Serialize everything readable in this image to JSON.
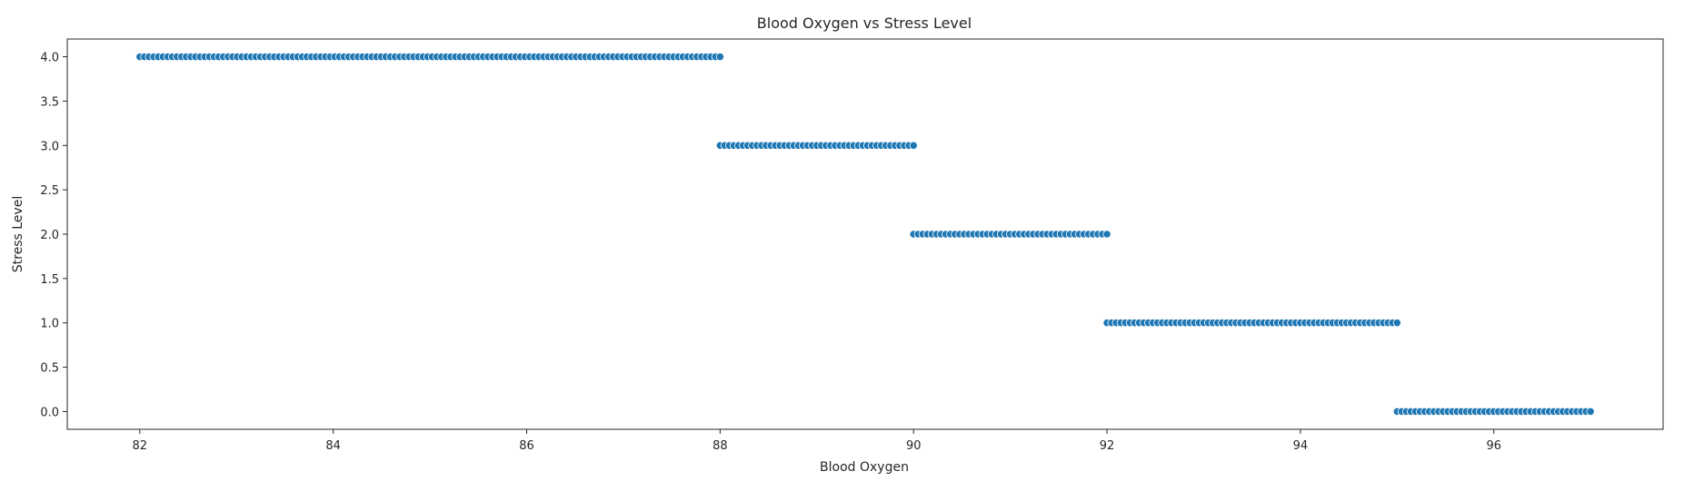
{
  "chart_data": {
    "type": "scatter",
    "title": "Blood Oxygen vs Stress Level",
    "xlabel": "Blood Oxygen",
    "ylabel": "Stress Level",
    "xlim": [
      81.25,
      97.75
    ],
    "ylim": [
      -0.2,
      4.2
    ],
    "xticks": [
      82,
      84,
      86,
      88,
      90,
      92,
      94,
      96
    ],
    "yticks": [
      0.0,
      0.5,
      1.0,
      1.5,
      2.0,
      2.5,
      3.0,
      3.5,
      4.0
    ],
    "grid": false,
    "point_color": "#1f77b4",
    "clusters": [
      {
        "stress_level": 4.0,
        "x_min": 82.0,
        "x_max": 88.0,
        "step": 0.048
      },
      {
        "stress_level": 3.0,
        "x_min": 88.0,
        "x_max": 90.0,
        "step": 0.048
      },
      {
        "stress_level": 2.0,
        "x_min": 90.0,
        "x_max": 92.0,
        "step": 0.048
      },
      {
        "stress_level": 1.0,
        "x_min": 92.0,
        "x_max": 95.0,
        "step": 0.048
      },
      {
        "stress_level": 0.0,
        "x_min": 95.0,
        "x_max": 97.0,
        "step": 0.048
      }
    ]
  }
}
